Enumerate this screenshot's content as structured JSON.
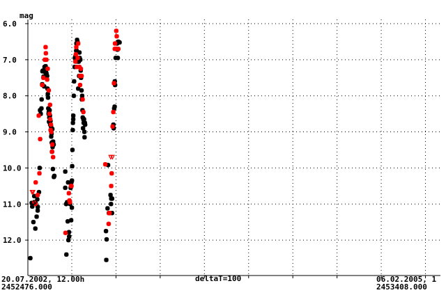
{
  "chart_data": {
    "type": "scatter",
    "title": "",
    "ylabel": "mag",
    "xlabel": "deltaT=100",
    "x_reference_jd": 2452476.0,
    "y_axis_inverted": true,
    "ylim": [
      6.0,
      13.0
    ],
    "yticks": [
      "6.0",
      "7.0",
      "8.0",
      "9.0",
      "10.0",
      "11.0",
      "12.0"
    ],
    "x_start_label_date": "20.07.2002, 12.00h",
    "x_start_label_jd": "2452476.000",
    "x_end_label_date": "06.02.2005, 1",
    "x_end_label_jd": "2453408.000",
    "grid": true,
    "colors": {
      "series_a": "#000000",
      "series_b": "#ff0000"
    },
    "series": [
      {
        "marker": "star",
        "color": "#000000",
        "points": [
          [
            2452481.6,
            12.5
          ],
          [
            2452484.6,
            10.97
          ],
          [
            2452485.9,
            11.07
          ],
          [
            2452488.5,
            11.5
          ],
          [
            2452490.4,
            10.78
          ],
          [
            2452492.9,
            11.68
          ],
          [
            2452493.5,
            10.98
          ],
          [
            2452495.8,
            11.35
          ],
          [
            2452497.4,
            10.87
          ],
          [
            2452498.2,
            11.18
          ],
          [
            2452498.4,
            11.08
          ],
          [
            2452501.1,
            10.67
          ],
          [
            2452502.6,
            10.0
          ],
          [
            2452503.5,
            8.4
          ],
          [
            2452505.1,
            8.5
          ],
          [
            2452506.7,
            8.35
          ],
          [
            2452507.1,
            8.1
          ],
          [
            2452508.4,
            7.68
          ],
          [
            2452508.9,
            7.32
          ],
          [
            2452510.2,
            7.3
          ],
          [
            2452511.4,
            7.47
          ],
          [
            2452512.0,
            7.32
          ],
          [
            2452512.9,
            7.74
          ],
          [
            2452513.7,
            7.2
          ],
          [
            2452514.4,
            7.25
          ],
          [
            2452515.3,
            7.35
          ],
          [
            2452516.1,
            7.18
          ],
          [
            2452516.8,
            7.3
          ],
          [
            2452517.4,
            7.27
          ],
          [
            2452518.1,
            7.38
          ],
          [
            2452518.8,
            7.25
          ],
          [
            2452519.6,
            7.45
          ],
          [
            2452520.3,
            7.8
          ],
          [
            2452521.1,
            7.95
          ],
          [
            2452521.6,
            8.05
          ],
          [
            2452522.2,
            8.35
          ],
          [
            2452522.9,
            8.5
          ],
          [
            2452523.3,
            8.45
          ],
          [
            2452523.9,
            8.72
          ],
          [
            2452524.5,
            8.6
          ],
          [
            2452525.2,
            8.4
          ],
          [
            2452525.9,
            8.55
          ],
          [
            2452526.5,
            8.8
          ],
          [
            2452527.2,
            8.7
          ],
          [
            2452527.7,
            8.95
          ],
          [
            2452528.4,
            8.85
          ],
          [
            2452528.8,
            9.13
          ],
          [
            2452529.5,
            9.05
          ],
          [
            2452530.0,
            9.3
          ],
          [
            2452530.6,
            9.55
          ],
          [
            2452531.3,
            8.92
          ],
          [
            2452531.9,
            9.42
          ],
          [
            2452532.6,
            10.03
          ],
          [
            2452533.1,
            9.27
          ],
          [
            2452534.3,
            9.35
          ],
          [
            2452534.8,
            10.25
          ],
          [
            2452535.9,
            10.22
          ],
          [
            2452560.6,
            10.1
          ],
          [
            2452560.5,
            10.55
          ],
          [
            2452562.6,
            11.0
          ],
          [
            2452563.1,
            12.4
          ],
          [
            2452564.7,
            10.95
          ],
          [
            2452566.1,
            11.48
          ],
          [
            2452567.0,
            10.4
          ],
          [
            2452567.7,
            12.0
          ],
          [
            2452569.0,
            11.78
          ],
          [
            2452569.4,
            11.9
          ],
          [
            2452571.5,
            11.0
          ],
          [
            2452572.8,
            10.55
          ],
          [
            2452573.9,
            11.45
          ],
          [
            2452574.5,
            10.4
          ],
          [
            2452575.5,
            11.1
          ],
          [
            2452575.7,
            10.35
          ],
          [
            2452576.2,
            9.95
          ],
          [
            2452576.8,
            9.5
          ],
          [
            2452577.5,
            8.95
          ],
          [
            2452577.9,
            8.75
          ],
          [
            2452578.6,
            8.65
          ],
          [
            2452578.7,
            8.55
          ],
          [
            2452579.9,
            8.0
          ],
          [
            2452580.6,
            7.6
          ],
          [
            2452581.8,
            7.2
          ],
          [
            2452582.3,
            6.95
          ],
          [
            2452583.8,
            6.9
          ],
          [
            2452584.5,
            7.05
          ],
          [
            2452585.3,
            6.75
          ],
          [
            2452585.8,
            6.55
          ],
          [
            2452586.4,
            6.75
          ],
          [
            2452587.3,
            6.45
          ],
          [
            2452588.2,
            6.5
          ],
          [
            2452589.0,
            7.05
          ],
          [
            2452589.8,
            7.8
          ],
          [
            2452590.6,
            7.05
          ],
          [
            2452591.2,
            7.05
          ],
          [
            2452591.9,
            7.45
          ],
          [
            2452592.6,
            6.8
          ],
          [
            2452593.1,
            6.95
          ],
          [
            2452594.0,
            7.45
          ],
          [
            2452594.6,
            7.0
          ],
          [
            2452595.5,
            7.3
          ],
          [
            2452596.3,
            7.5
          ],
          [
            2452597.4,
            7.85
          ],
          [
            2452598.1,
            8.1
          ],
          [
            2452598.8,
            8.0
          ],
          [
            2452599.5,
            8.4
          ],
          [
            2452600.1,
            8.6
          ],
          [
            2452600.8,
            8.9
          ],
          [
            2452601.5,
            8.65
          ],
          [
            2452602.2,
            8.75
          ],
          [
            2452603.0,
            8.65
          ],
          [
            2452603.8,
            9.0
          ],
          [
            2452604.2,
            9.15
          ],
          [
            2452604.9,
            8.75
          ],
          [
            2452605.5,
            8.8
          ],
          [
            2452652.7,
            11.75
          ],
          [
            2452653.4,
            12.55
          ],
          [
            2452654.1,
            11.98
          ],
          [
            2452656.2,
            11.12
          ],
          [
            2452657.4,
            9.92
          ],
          [
            2452659.2,
            11.25
          ],
          [
            2452660.9,
            11.25
          ],
          [
            2452663.0,
            10.75
          ],
          [
            2452664.1,
            11.0
          ],
          [
            2452664.6,
            10.85
          ],
          [
            2452666.5,
            10.85
          ],
          [
            2452666.3,
            11.25
          ],
          [
            2452669.4,
            8.8
          ],
          [
            2452670.1,
            8.9
          ],
          [
            2452671.2,
            8.35
          ],
          [
            2452672.3,
            8.3
          ],
          [
            2452672.6,
            7.6
          ],
          [
            2452673.3,
            7.7
          ],
          [
            2452674.6,
            6.95
          ],
          [
            2452676.1,
            6.7
          ],
          [
            2452677.6,
            6.55
          ],
          [
            2452678.5,
            6.72
          ],
          [
            2452679.4,
            6.95
          ],
          [
            2452680.6,
            6.5
          ],
          [
            2452683.4,
            6.52
          ]
        ]
      },
      {
        "marker": "star",
        "color": "#ff0000",
        "points": [
          [
            2452490.8,
            10.95
          ],
          [
            2452492.8,
            11.0
          ],
          [
            2452493.7,
            10.4
          ],
          [
            2452498.3,
            10.75
          ],
          [
            2452500.6,
            8.55
          ],
          [
            2452502.1,
            10.15
          ],
          [
            2452503.8,
            9.2
          ],
          [
            2452508.4,
            7.7
          ],
          [
            2452511.0,
            7.5
          ],
          [
            2452514.4,
            7.0
          ],
          [
            2452516.1,
            6.65
          ],
          [
            2452516.7,
            6.82
          ],
          [
            2452517.8,
            7.0
          ],
          [
            2452519.6,
            7.55
          ],
          [
            2452520.8,
            7.25
          ],
          [
            2452523.2,
            7.85
          ],
          [
            2452524.9,
            8.5
          ],
          [
            2452526.1,
            8.25
          ],
          [
            2452526.6,
            8.65
          ],
          [
            2452527.4,
            8.95
          ],
          [
            2452528.2,
            8.8
          ],
          [
            2452529.1,
            9.0
          ],
          [
            2452530.5,
            9.55
          ],
          [
            2452531.2,
            9.35
          ],
          [
            2452533.0,
            9.7
          ],
          [
            2452561.1,
            11.8
          ],
          [
            2452568.7,
            10.7
          ],
          [
            2452570.1,
            10.9
          ],
          [
            2452571.2,
            10.95
          ],
          [
            2452573.7,
            10.5
          ],
          [
            2452574.6,
            10.5
          ],
          [
            2452583.4,
            7.05
          ],
          [
            2452584.6,
            6.85
          ],
          [
            2452585.5,
            6.65
          ],
          [
            2452586.6,
            7.2
          ],
          [
            2452588.8,
            6.95
          ],
          [
            2452589.8,
            6.55
          ],
          [
            2452592.6,
            7.2
          ],
          [
            2452593.6,
            7.45
          ],
          [
            2452594.1,
            7.7
          ],
          [
            2452595.8,
            7.25
          ],
          [
            2452597.5,
            7.45
          ],
          [
            2452599.8,
            8.1
          ],
          [
            2452601.5,
            8.45
          ],
          [
            2452651.1,
            9.9
          ],
          [
            2452658.7,
            11.55
          ],
          [
            2452659.4,
            11.25
          ],
          [
            2452660.9,
            11.25
          ],
          [
            2452664.5,
            10.5
          ],
          [
            2452665.6,
            10.15
          ],
          [
            2452667.6,
            8.85
          ],
          [
            2452669.3,
            8.45
          ],
          [
            2452670.7,
            7.65
          ],
          [
            2452672.6,
            6.7
          ],
          [
            2452673.1,
            6.55
          ],
          [
            2452674.4,
            6.7
          ],
          [
            2452675.9,
            6.2
          ],
          [
            2452677.0,
            6.35
          ],
          [
            2452680.6,
            6.7
          ]
        ]
      },
      {
        "marker": "triangle-down",
        "color": "#ff0000",
        "points": [
          [
            2452485.4,
            10.67
          ],
          [
            2452487.7,
            10.67
          ],
          [
            2452663.3,
            9.7
          ],
          [
            2452667.4,
            9.7
          ]
        ]
      },
      {
        "marker": "triangle-down",
        "color": "#000000",
        "points": [
          [
            2452486.3,
            11.05
          ],
          [
            2452492.5,
            10.95
          ]
        ]
      }
    ]
  }
}
